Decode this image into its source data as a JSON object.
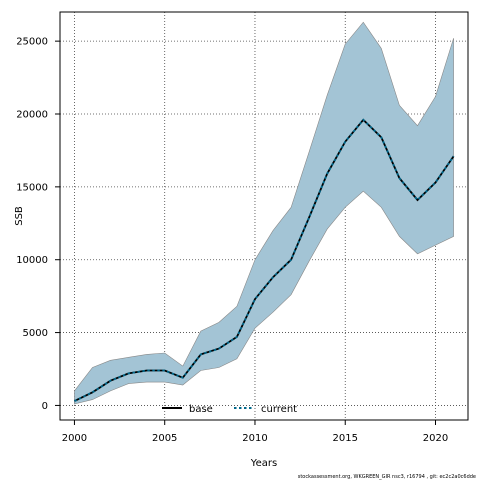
{
  "chart_data": {
    "type": "line",
    "xlabel": "Years",
    "ylabel": "SSB",
    "xlim": [
      1999.2,
      2021.8
    ],
    "ylim": [
      -1000,
      27000
    ],
    "x_ticks": [
      2000,
      2005,
      2010,
      2015,
      2020
    ],
    "y_ticks": [
      0,
      5000,
      10000,
      15000,
      20000,
      25000
    ],
    "x_tick_labels": [
      "2000",
      "2005",
      "2010",
      "2015",
      "2020"
    ],
    "y_tick_labels": [
      "0",
      "5000",
      "10000",
      "15000",
      "20000",
      "25000"
    ],
    "grid": true,
    "x": [
      2000,
      2001,
      2002,
      2003,
      2004,
      2005,
      2006,
      2007,
      2008,
      2009,
      2010,
      2011,
      2012,
      2013,
      2014,
      2015,
      2016,
      2017,
      2018,
      2019,
      2020,
      2021
    ],
    "series": [
      {
        "name": "base",
        "color": "#000000",
        "values": [
          300,
          900,
          1700,
          2200,
          2400,
          2400,
          1900,
          3500,
          3900,
          4700,
          7300,
          8800,
          10000,
          12900,
          15900,
          18100,
          19600,
          18400,
          15600,
          14100,
          15300,
          17100
        ]
      },
      {
        "name": "current",
        "color": "#00688b",
        "values": [
          300,
          900,
          1700,
          2200,
          2400,
          2400,
          1900,
          3500,
          3900,
          4700,
          7300,
          8800,
          10000,
          12900,
          15900,
          18100,
          19600,
          18400,
          15600,
          14100,
          15300,
          17100
        ]
      }
    ],
    "band": {
      "color": "#a3c4d5",
      "upper": [
        1000,
        2600,
        3100,
        3300,
        3500,
        3600,
        2700,
        5100,
        5700,
        6800,
        10000,
        12000,
        13600,
        17400,
        21300,
        24800,
        26300,
        24500,
        20600,
        19200,
        21200,
        25200
      ],
      "lower": [
        100,
        400,
        1000,
        1500,
        1600,
        1600,
        1400,
        2400,
        2600,
        3200,
        5300,
        6400,
        7600,
        9900,
        12100,
        13600,
        14700,
        13600,
        11600,
        10400,
        11000,
        11600
      ]
    },
    "legend": {
      "position": "bottom-center",
      "entries": [
        "base",
        "current"
      ]
    },
    "footer": "stockassessment.org, WKGREEN_GIR nsc3, r16794 , git: ec2c2a0c6dde"
  }
}
